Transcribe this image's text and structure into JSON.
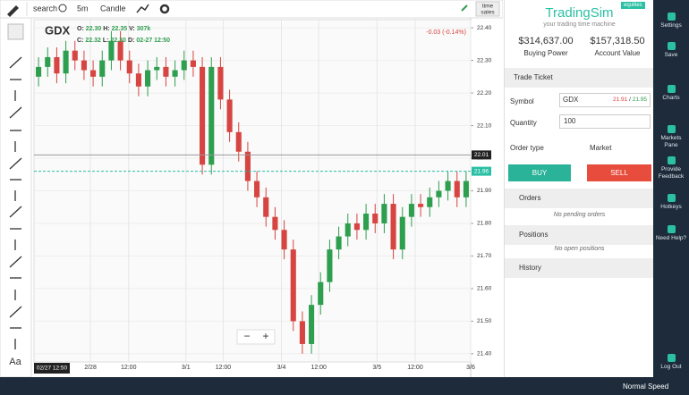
{
  "toolbar": {
    "search": "search",
    "interval": "5m",
    "chart_style": "Candle",
    "time_sales_1": "time",
    "time_sales_2": "sales"
  },
  "chart_data": {
    "type": "candlestick",
    "symbol": "GDX",
    "header": {
      "o_label": "O:",
      "o": "22.30",
      "h_label": "H:",
      "h": "22.35",
      "v_label": "V:",
      "v": "307k",
      "c_label": "C:",
      "c": "22.32",
      "l_label": "L:",
      "l": "22.30",
      "d_label": "D:",
      "d": "02-27 12:50"
    },
    "change": "-0.03 (-0.14%)",
    "open": [
      22.25,
      22.28,
      22.31,
      22.26,
      22.33,
      22.3,
      22.27,
      22.25,
      22.3,
      22.36,
      22.3,
      22.26,
      22.22,
      22.27,
      22.28,
      22.25,
      22.27,
      22.3,
      22.28,
      21.98,
      22.28,
      22.18,
      22.08,
      22.02,
      21.93,
      21.88,
      21.82,
      21.78,
      21.72,
      21.5,
      21.43,
      21.55,
      21.62,
      21.72,
      21.76,
      21.8,
      21.78,
      21.83,
      21.8,
      21.86,
      21.72,
      21.82,
      21.86,
      21.85,
      21.88,
      21.9,
      21.93,
      21.88
    ],
    "high": [
      22.31,
      22.34,
      22.34,
      22.36,
      22.36,
      22.33,
      22.3,
      22.33,
      22.39,
      22.39,
      22.33,
      22.29,
      22.3,
      22.31,
      22.31,
      22.3,
      22.33,
      22.33,
      22.31,
      22.31,
      22.31,
      22.21,
      22.11,
      22.05,
      21.96,
      21.91,
      21.85,
      21.81,
      21.75,
      21.53,
      21.58,
      21.65,
      21.75,
      21.79,
      21.83,
      21.83,
      21.86,
      21.86,
      21.89,
      21.89,
      21.85,
      21.89,
      21.89,
      21.91,
      21.93,
      21.96,
      21.96,
      21.96
    ],
    "low": [
      22.22,
      22.25,
      22.23,
      22.23,
      22.27,
      22.24,
      22.22,
      22.22,
      22.27,
      22.27,
      22.23,
      22.19,
      22.19,
      22.24,
      22.22,
      22.22,
      22.24,
      22.25,
      21.95,
      21.95,
      22.15,
      22.05,
      21.99,
      21.9,
      21.85,
      21.79,
      21.75,
      21.69,
      21.47,
      21.4,
      21.4,
      21.52,
      21.59,
      21.69,
      21.73,
      21.75,
      21.75,
      21.77,
      21.77,
      21.69,
      21.69,
      21.79,
      21.82,
      21.82,
      21.85,
      21.87,
      21.85,
      21.85
    ],
    "close": [
      22.28,
      22.31,
      22.26,
      22.33,
      22.3,
      22.27,
      22.25,
      22.3,
      22.36,
      22.3,
      22.26,
      22.22,
      22.27,
      22.28,
      22.25,
      22.27,
      22.3,
      22.28,
      21.98,
      22.28,
      22.18,
      22.08,
      22.02,
      21.93,
      21.88,
      21.82,
      21.78,
      21.72,
      21.5,
      21.43,
      21.55,
      21.62,
      21.72,
      21.76,
      21.8,
      21.78,
      21.83,
      21.8,
      21.86,
      21.72,
      21.82,
      21.86,
      21.85,
      21.88,
      21.9,
      21.93,
      21.88,
      21.93
    ],
    "up_color": "#2e9e4f",
    "down_color": "#d64541",
    "ylim": [
      21.375,
      22.425
    ],
    "yticks": [
      {
        "value": 22.4,
        "label": "22.40"
      },
      {
        "value": 22.3,
        "label": "22.30"
      },
      {
        "value": 22.2,
        "label": "22.20"
      },
      {
        "value": 22.1,
        "label": "22.10"
      },
      {
        "value": 22.0,
        "label": "22.00"
      },
      {
        "value": 21.9,
        "label": "21.90"
      },
      {
        "value": 21.8,
        "label": "21.80"
      },
      {
        "value": 21.7,
        "label": "21.70"
      },
      {
        "value": 21.6,
        "label": "21.60"
      },
      {
        "value": 21.5,
        "label": "21.50"
      },
      {
        "value": 21.4,
        "label": "21.40"
      }
    ],
    "xlim": [
      0,
      48
    ],
    "xticks": [
      {
        "value": 6.2,
        "label": "2/28"
      },
      {
        "value": 10.4,
        "label": "12:00"
      },
      {
        "value": 16.7,
        "label": "3/1"
      },
      {
        "value": 20.8,
        "label": "12:00"
      },
      {
        "value": 27.2,
        "label": "3/4"
      },
      {
        "value": 31.3,
        "label": "12:00"
      },
      {
        "value": 37.7,
        "label": "3/5"
      },
      {
        "value": 41.9,
        "label": "12:00"
      },
      {
        "value": 48,
        "label": "3/6"
      }
    ],
    "cursor_time": "02/27 12:50",
    "last_price": {
      "value": 22.01,
      "label": "22.01"
    },
    "bid_line": {
      "value": 21.96,
      "label": "21.96"
    },
    "grid": true
  },
  "zoom": {
    "minus": "−",
    "plus": "+"
  },
  "text_tool": "Aa",
  "panel": {
    "brand": "TradingSim",
    "badge": "equities",
    "tagline": "your trading time machine",
    "buying_power": "$314,637.00",
    "buying_power_label": "Buying Power",
    "account_value": "$157,318.50",
    "account_value_label": "Account Value",
    "trade_ticket": "Trade Ticket",
    "symbol_label": "Symbol",
    "symbol": "GDX",
    "bid": "21.91",
    "sep": " / ",
    "ask": "21.95",
    "quantity_label": "Quantity",
    "quantity": "100",
    "order_type_label": "Order type",
    "order_type": "Market",
    "buy": "BUY",
    "sell": "SELL",
    "orders": "Orders",
    "no_orders": "No pending orders",
    "positions": "Positions",
    "no_positions": "No open positions",
    "history": "History"
  },
  "sidebar": [
    "Settings",
    "Save",
    "Charts",
    "Markets Pane",
    "Provide Feedback",
    "Hotkeys",
    "Need Help?",
    "Log Out"
  ],
  "footer": {
    "speed": "Normal Speed"
  }
}
